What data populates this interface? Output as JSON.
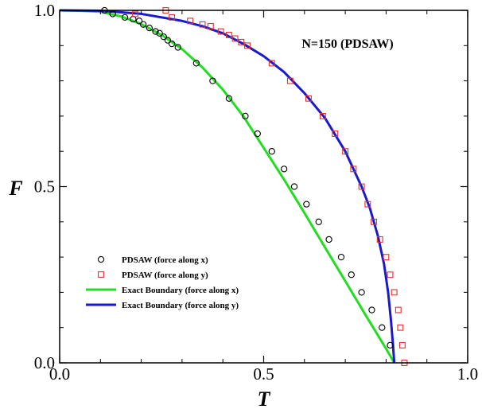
{
  "chart_data": {
    "type": "scatter",
    "title": "",
    "annotation": "N=150 (PDSAW)",
    "xlabel": "T",
    "ylabel": "F",
    "xlim": [
      0,
      1
    ],
    "ylim": [
      0,
      1
    ],
    "xticks": [
      {
        "value": 0,
        "label": "0.0"
      },
      {
        "value": 0.5,
        "label": "0.5"
      },
      {
        "value": 1,
        "label": "1.0"
      }
    ],
    "yticks": [
      {
        "value": 0,
        "label": "0.0"
      },
      {
        "value": 0.5,
        "label": "0.5"
      },
      {
        "value": 1,
        "label": "1.0"
      }
    ],
    "grid": false,
    "legend_position": "lower-left",
    "series": [
      {
        "name": "PDSAW (force along x)",
        "kind": "scatter",
        "marker": "circle",
        "color": "#000000",
        "points": [
          [
            0.11,
            1.0
          ],
          [
            0.13,
            0.99
          ],
          [
            0.16,
            0.98
          ],
          [
            0.18,
            0.975
          ],
          [
            0.195,
            0.97
          ],
          [
            0.205,
            0.96
          ],
          [
            0.22,
            0.95
          ],
          [
            0.235,
            0.94
          ],
          [
            0.245,
            0.935
          ],
          [
            0.255,
            0.925
          ],
          [
            0.265,
            0.915
          ],
          [
            0.275,
            0.905
          ],
          [
            0.29,
            0.895
          ],
          [
            0.335,
            0.85
          ],
          [
            0.375,
            0.8
          ],
          [
            0.415,
            0.75
          ],
          [
            0.455,
            0.7
          ],
          [
            0.485,
            0.65
          ],
          [
            0.52,
            0.6
          ],
          [
            0.55,
            0.55
          ],
          [
            0.575,
            0.5
          ],
          [
            0.605,
            0.45
          ],
          [
            0.635,
            0.4
          ],
          [
            0.66,
            0.35
          ],
          [
            0.69,
            0.3
          ],
          [
            0.715,
            0.25
          ],
          [
            0.74,
            0.2
          ],
          [
            0.765,
            0.15
          ],
          [
            0.79,
            0.1
          ],
          [
            0.81,
            0.05
          ]
        ]
      },
      {
        "name": "PDSAW (force along y)",
        "kind": "scatter",
        "marker": "square",
        "color": "#e03030",
        "points": [
          [
            0.185,
            0.99
          ],
          [
            0.26,
            1.0
          ],
          [
            0.275,
            0.98
          ],
          [
            0.32,
            0.97
          ],
          [
            0.35,
            0.96
          ],
          [
            0.37,
            0.955
          ],
          [
            0.395,
            0.94
          ],
          [
            0.415,
            0.93
          ],
          [
            0.43,
            0.92
          ],
          [
            0.445,
            0.91
          ],
          [
            0.46,
            0.9
          ],
          [
            0.52,
            0.85
          ],
          [
            0.565,
            0.8
          ],
          [
            0.61,
            0.75
          ],
          [
            0.645,
            0.7
          ],
          [
            0.675,
            0.65
          ],
          [
            0.7,
            0.6
          ],
          [
            0.72,
            0.55
          ],
          [
            0.74,
            0.5
          ],
          [
            0.755,
            0.45
          ],
          [
            0.77,
            0.4
          ],
          [
            0.785,
            0.35
          ],
          [
            0.8,
            0.3
          ],
          [
            0.81,
            0.25
          ],
          [
            0.82,
            0.2
          ],
          [
            0.83,
            0.15
          ],
          [
            0.835,
            0.1
          ],
          [
            0.84,
            0.05
          ],
          [
            0.845,
            0.0
          ]
        ]
      },
      {
        "name": "Exact Boundary (force along x)",
        "kind": "line",
        "color": "#22dd22",
        "points": [
          [
            0.0,
            1.0
          ],
          [
            0.05,
            0.999
          ],
          [
            0.1,
            0.996
          ],
          [
            0.15,
            0.983
          ],
          [
            0.2,
            0.961
          ],
          [
            0.25,
            0.93
          ],
          [
            0.3,
            0.89
          ],
          [
            0.35,
            0.838
          ],
          [
            0.4,
            0.775
          ],
          [
            0.45,
            0.7
          ],
          [
            0.5,
            0.61
          ],
          [
            0.55,
            0.52
          ],
          [
            0.6,
            0.425
          ],
          [
            0.65,
            0.328
          ],
          [
            0.7,
            0.232
          ],
          [
            0.75,
            0.135
          ],
          [
            0.8,
            0.04
          ],
          [
            0.82,
            0.0
          ]
        ]
      },
      {
        "name": "Exact Boundary (force along y)",
        "kind": "line",
        "color": "#1a1acc",
        "points": [
          [
            0.0,
            1.0
          ],
          [
            0.1,
            0.999
          ],
          [
            0.2,
            0.99
          ],
          [
            0.3,
            0.97
          ],
          [
            0.35,
            0.955
          ],
          [
            0.4,
            0.935
          ],
          [
            0.45,
            0.905
          ],
          [
            0.5,
            0.87
          ],
          [
            0.55,
            0.825
          ],
          [
            0.6,
            0.765
          ],
          [
            0.65,
            0.695
          ],
          [
            0.7,
            0.6
          ],
          [
            0.74,
            0.5
          ],
          [
            0.76,
            0.44
          ],
          [
            0.78,
            0.36
          ],
          [
            0.795,
            0.28
          ],
          [
            0.805,
            0.2
          ],
          [
            0.812,
            0.12
          ],
          [
            0.817,
            0.05
          ],
          [
            0.82,
            0.0
          ]
        ]
      }
    ]
  }
}
